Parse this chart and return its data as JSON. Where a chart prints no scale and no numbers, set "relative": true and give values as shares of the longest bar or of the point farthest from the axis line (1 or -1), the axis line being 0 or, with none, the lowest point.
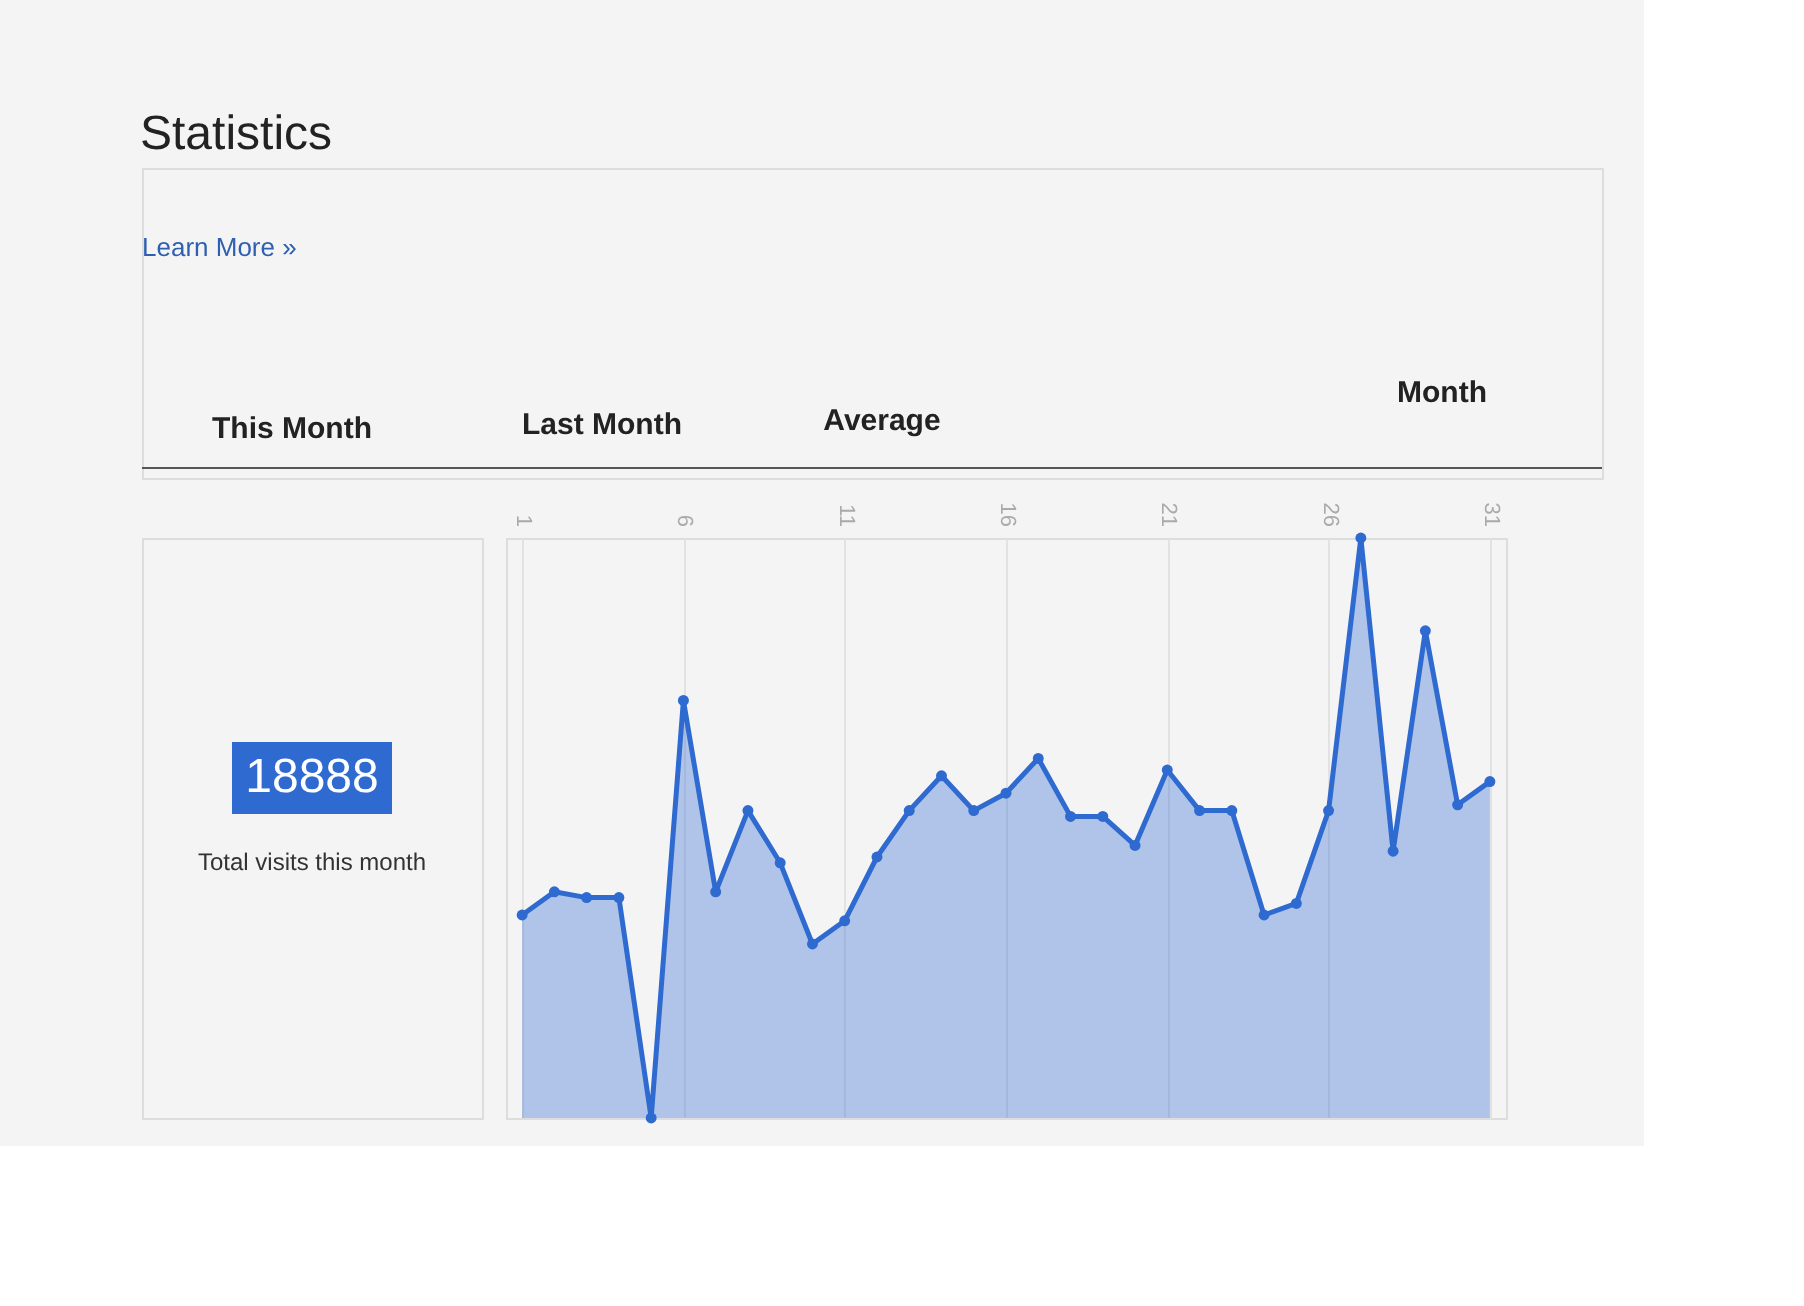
{
  "chart_data": {
    "type": "area",
    "title": "Statistics",
    "relative": true,
    "annotations": [
      "Learn More »",
      "This Month",
      "Last Month",
      "Average",
      "Month",
      "18888",
      "Total visits this month"
    ],
    "x": [
      1,
      2,
      3,
      4,
      5,
      6,
      7,
      8,
      9,
      10,
      11,
      12,
      13,
      14,
      15,
      16,
      17,
      18,
      19,
      20,
      21,
      22,
      23,
      24,
      25,
      26,
      27,
      28,
      29,
      30,
      31
    ],
    "series": [
      {
        "color": "#2e6ad0",
        "values": [
          0.35,
          0.39,
          0.38,
          0.38,
          0,
          0.72,
          0.39,
          0.53,
          0.44,
          0.3,
          0.34,
          0.45,
          0.53,
          0.59,
          0.53,
          0.56,
          0.62,
          0.52,
          0.52,
          0.47,
          0.6,
          0.53,
          0.53,
          0.35,
          0.37,
          0.53,
          1,
          0.46,
          0.84,
          0.54,
          0.58
        ]
      }
    ],
    "xlim": [
      0.5,
      31.5
    ],
    "xticks": [
      1,
      6,
      11,
      16,
      21,
      26,
      31
    ],
    "grid": "x",
    "marker": "circle"
  }
}
